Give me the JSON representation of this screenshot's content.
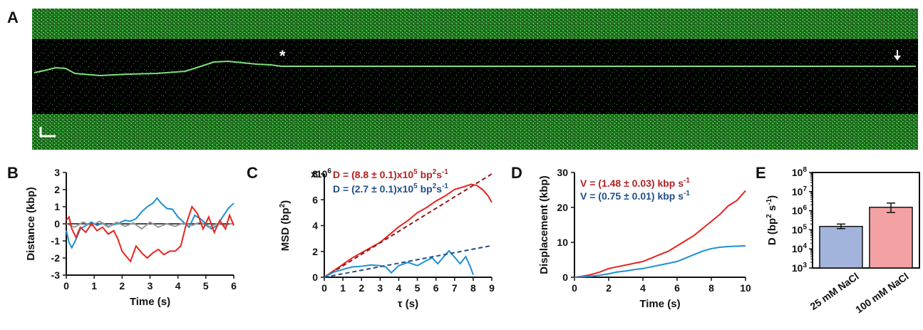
{
  "figure": {
    "panel_labels": [
      "A",
      "B",
      "C",
      "D",
      "E"
    ]
  },
  "kymograph": {
    "marker_asterisk": "*",
    "marker_arrow": "down-arrow-icon",
    "trace_color": "#7de07d"
  },
  "chart_data": [
    {
      "panel": "B",
      "type": "line",
      "xlabel": "Time (s)",
      "ylabel": "Distance (kbp)",
      "xlim": [
        0,
        6
      ],
      "ylim": [
        -3,
        3
      ],
      "xticks": [
        "0",
        "1",
        "2",
        "3",
        "4",
        "5",
        "6"
      ],
      "yticks": [
        "-3",
        "-2",
        "-1",
        "0",
        "1",
        "2",
        "3"
      ],
      "series": [
        {
          "color": "#1e90d0",
          "x": [
            0,
            0.1,
            0.2,
            0.35,
            0.5,
            0.7,
            0.9,
            1.1,
            1.3,
            1.5,
            1.7,
            1.9,
            2.1,
            2.3,
            2.5,
            2.7,
            2.9,
            3.1,
            3.25,
            3.4,
            3.6,
            3.8,
            4.0,
            4.2,
            4.4,
            4.6,
            4.8,
            5.0,
            5.2,
            5.4,
            5.6,
            5.8,
            6.0
          ],
          "y": [
            -0.4,
            -1.1,
            -1.4,
            -0.9,
            -0.3,
            -0.1,
            0.1,
            -0.1,
            0.05,
            -0.15,
            -0.05,
            0.05,
            0.2,
            0.15,
            0.3,
            0.7,
            1.0,
            1.2,
            1.5,
            1.2,
            0.9,
            0.85,
            0.4,
            0.1,
            -0.2,
            0.5,
            0.3,
            0.0,
            -0.3,
            -0.1,
            0.4,
            0.9,
            1.2
          ]
        },
        {
          "color": "#999999",
          "x": [
            0,
            0.3,
            0.6,
            0.9,
            1.2,
            1.5,
            1.8,
            2.1,
            2.4,
            2.7,
            3.0,
            3.3,
            3.6,
            3.9,
            4.2,
            4.5,
            4.8,
            5.1,
            5.4,
            5.7,
            6.0
          ],
          "y": [
            0,
            -0.2,
            0.1,
            -0.1,
            0.15,
            -0.2,
            0.1,
            -0.15,
            0.05,
            -0.3,
            0.1,
            -0.2,
            0.0,
            -0.15,
            0.05,
            -0.1,
            0.1,
            -0.2,
            0.0,
            -0.1,
            0.05
          ]
        },
        {
          "color": "#e8231f",
          "x": [
            0,
            0.1,
            0.2,
            0.35,
            0.5,
            0.7,
            0.9,
            1.1,
            1.3,
            1.5,
            1.7,
            1.85,
            2.0,
            2.15,
            2.3,
            2.5,
            2.7,
            2.9,
            3.1,
            3.3,
            3.5,
            3.7,
            3.9,
            4.1,
            4.3,
            4.5,
            4.7,
            4.9,
            5.1,
            5.3,
            5.5,
            5.7,
            5.85,
            6.0
          ],
          "y": [
            0.2,
            0.4,
            -0.3,
            -0.8,
            -0.2,
            -0.5,
            0.0,
            -0.4,
            -0.2,
            -0.6,
            -0.4,
            -0.9,
            -1.6,
            -1.9,
            -2.2,
            -1.3,
            -1.7,
            -2.0,
            -1.7,
            -1.5,
            -1.8,
            -1.6,
            -1.6,
            -1.3,
            0.0,
            1.0,
            0.6,
            -0.3,
            0.4,
            -0.5,
            0.2,
            -0.3,
            0.5,
            -0.1
          ]
        }
      ]
    },
    {
      "panel": "C",
      "type": "line",
      "xlabel": "τ (s)",
      "ylabel": "MSD (bp",
      "ylabel_sup": "2",
      "ylabel_close": ")",
      "xlim": [
        0,
        9
      ],
      "ylim": [
        0,
        8
      ],
      "y_multiplier": "x10",
      "y_multiplier_exp": "6",
      "xticks": [
        "0",
        "1",
        "2",
        "3",
        "4",
        "5",
        "6",
        "7",
        "8",
        "9"
      ],
      "yticks": [
        "0",
        "2",
        "4",
        "6",
        "8"
      ],
      "annotations": [
        {
          "color": "#b22222",
          "text": "D = (8.8 ± 0.1)x10",
          "sup1": "5",
          "mid": " bp",
          "sup2": "2",
          "tail": "s",
          "sup3": "-1"
        },
        {
          "color": "#1f4e8c",
          "text": "D = (2.7 ± 0.1)x10",
          "sup1": "5",
          "mid": " bp",
          "sup2": "2",
          "tail": "s",
          "sup3": "-1"
        }
      ],
      "series": [
        {
          "color": "#e8231f",
          "style": "solid",
          "x": [
            0,
            0.5,
            1,
            1.5,
            2,
            2.5,
            3,
            3.5,
            4,
            4.5,
            5,
            5.5,
            6,
            6.5,
            7,
            7.5,
            7.9,
            8.2,
            8.5,
            8.8,
            9.0
          ],
          "y": [
            0,
            0.5,
            1.0,
            1.5,
            1.9,
            2.3,
            2.7,
            3.3,
            3.9,
            4.4,
            5.0,
            5.4,
            5.9,
            6.3,
            6.8,
            7.0,
            7.2,
            7.1,
            6.8,
            6.3,
            5.8
          ]
        },
        {
          "color": "#8b1a1a",
          "style": "dashed",
          "x": [
            0,
            9
          ],
          "y": [
            0,
            8.0
          ]
        },
        {
          "color": "#1e90d0",
          "style": "solid",
          "x": [
            0,
            0.5,
            1,
            1.5,
            2,
            2.5,
            3,
            3.3,
            3.6,
            4,
            4.5,
            5,
            5.5,
            5.8,
            6.1,
            6.4,
            6.7,
            7.0,
            7.3,
            7.6,
            7.85,
            8.0
          ],
          "y": [
            0,
            0.4,
            0.6,
            0.8,
            0.85,
            0.95,
            0.9,
            0.8,
            0.35,
            0.9,
            1.15,
            0.9,
            1.3,
            1.5,
            1.05,
            1.55,
            2.05,
            1.55,
            1.05,
            1.6,
            0.8,
            0.2
          ]
        },
        {
          "color": "#1f4e8c",
          "style": "dashed",
          "x": [
            0,
            9
          ],
          "y": [
            0,
            2.45
          ]
        }
      ]
    },
    {
      "panel": "D",
      "type": "line",
      "xlabel": "Time (s)",
      "ylabel": "Displacement (kbp)",
      "xlim": [
        0,
        10
      ],
      "ylim": [
        0,
        30
      ],
      "xticks": [
        "0",
        "2",
        "4",
        "6",
        "8",
        "10"
      ],
      "yticks": [
        "0",
        "10",
        "20",
        "30"
      ],
      "annotations": [
        {
          "color": "#b22222",
          "text": "V = (1.48 ± 0.03) kbp s",
          "sup": "-1"
        },
        {
          "color": "#1f4e8c",
          "text": "V = (0.75 ± 0.01) kbp s",
          "sup": "-1"
        }
      ],
      "series": [
        {
          "color": "#e8231f",
          "x": [
            0,
            0.5,
            1,
            1.5,
            2,
            2.5,
            3,
            3.5,
            4,
            4.5,
            5,
            5.5,
            6,
            6.5,
            7,
            7.5,
            8,
            8.5,
            9,
            9.5,
            10
          ],
          "y": [
            0,
            0.3,
            0.8,
            1.5,
            2.5,
            3.0,
            3.5,
            4.0,
            4.5,
            5.5,
            6.5,
            7.5,
            9.0,
            10.5,
            12.0,
            14.0,
            16.0,
            18.0,
            20.5,
            22.0,
            24.8
          ]
        },
        {
          "color": "#1e90d0",
          "x": [
            0,
            0.5,
            1,
            1.5,
            2,
            2.5,
            3,
            3.5,
            4,
            4.5,
            5,
            5.5,
            6,
            6.5,
            7,
            7.5,
            8,
            8.5,
            9,
            9.5,
            10
          ],
          "y": [
            0,
            0.1,
            0.3,
            0.6,
            1.0,
            1.5,
            1.8,
            2.2,
            2.5,
            3.0,
            3.5,
            4.0,
            4.5,
            5.5,
            6.5,
            7.5,
            8.2,
            8.6,
            8.8,
            8.9,
            9.0
          ]
        }
      ]
    },
    {
      "panel": "E",
      "type": "bar",
      "log_scale": true,
      "ylabel": "D (bp",
      "ylabel_sup1": "2",
      "ylabel_mid": " s",
      "ylabel_sup2": "-1",
      "ylabel_close": ")",
      "categories": [
        "25 mM NaCl",
        "100 mM NaCl"
      ],
      "values": [
        150000,
        1500000
      ],
      "error_low": [
        115000,
        800000
      ],
      "error_high": [
        200000,
        2500000
      ],
      "colors": [
        "#a3b4dc",
        "#f4a1a4"
      ],
      "yticks_exp": [
        "3",
        "4",
        "5",
        "6",
        "7",
        "8"
      ],
      "ytick_base": "10"
    }
  ]
}
